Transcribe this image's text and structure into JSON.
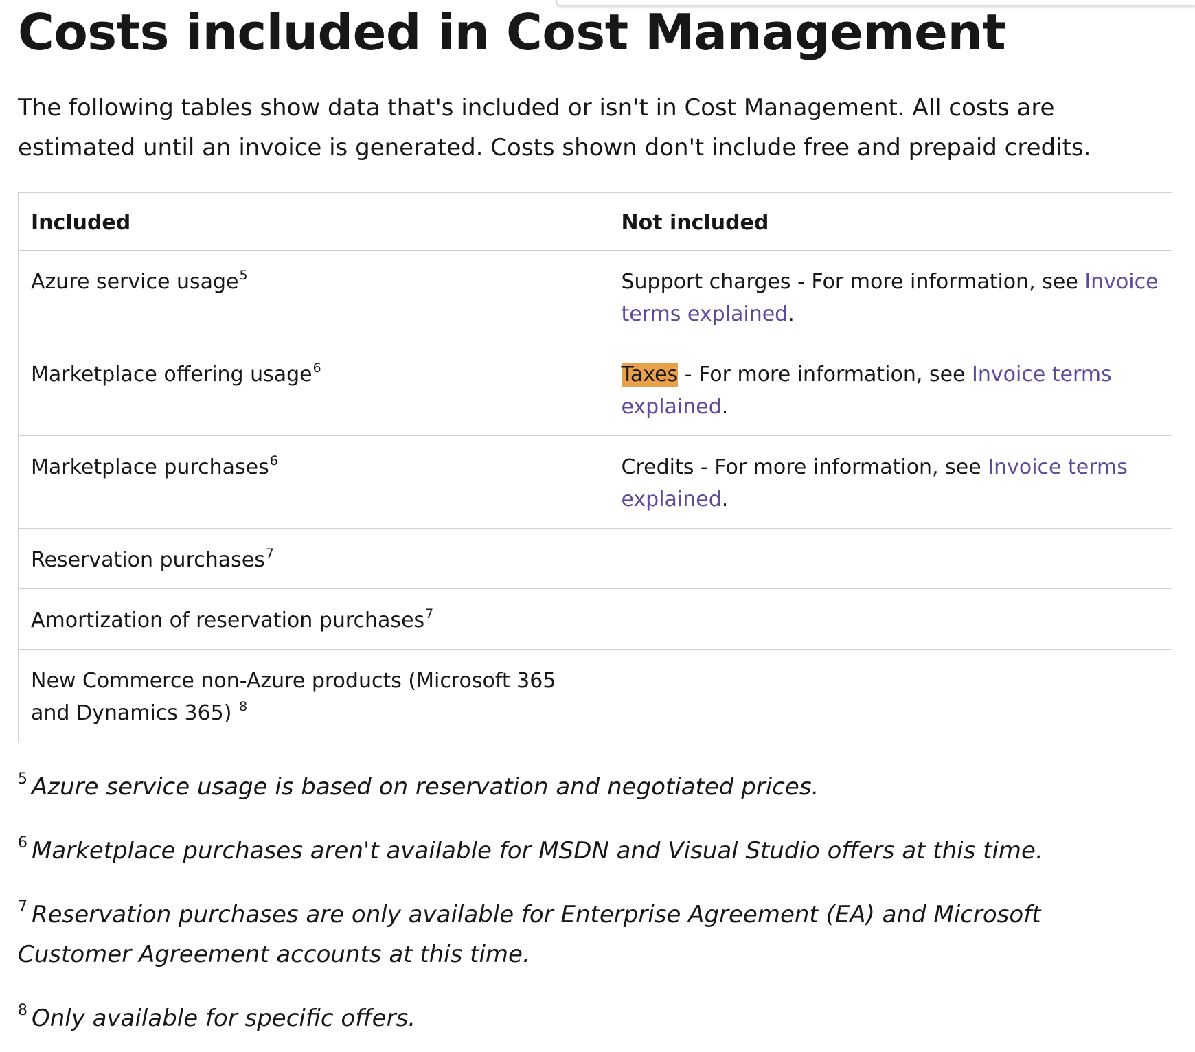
{
  "page": {
    "title": "Costs included in Cost Management",
    "intro": "The following tables show data that's included or isn't in Cost Management. All costs are estimated until an invoice is generated. Costs shown don't include free and prepaid credits."
  },
  "table": {
    "headers": [
      "Included",
      "Not included"
    ],
    "rows": [
      {
        "included": "Azure service usage",
        "included_note": "5",
        "not_included_lead": "Support charges",
        "not_included_text": " - For more information, see ",
        "not_included_link": "Invoice terms explained",
        "not_included_end": "."
      },
      {
        "included": "Marketplace offering usage",
        "included_note": "6",
        "not_included_lead": "Taxes",
        "not_included_text": " - For more information, see ",
        "not_included_link": "Invoice terms explained",
        "not_included_end": "."
      },
      {
        "included": "Marketplace purchases",
        "included_note": "6",
        "not_included_lead": "Credits",
        "not_included_text": " - For more information, see ",
        "not_included_link": "Invoice terms explained",
        "not_included_end": "."
      },
      {
        "included": "Reservation purchases",
        "included_note": "7"
      },
      {
        "included": "Amortization of reservation purchases",
        "included_note": "7"
      },
      {
        "included": "New Commerce non-Azure products (Microsoft 365 and Dynamics 365) ",
        "included_note": "8"
      }
    ]
  },
  "footnotes": [
    {
      "mark": "5",
      "text": "Azure service usage is based on reservation and negotiated prices."
    },
    {
      "mark": "6",
      "text": "Marketplace purchases aren't available for MSDN and Visual Studio offers at this time."
    },
    {
      "mark": "7",
      "text": "Reservation purchases are only available for Enterprise Agreement (EA) and Microsoft Customer Agreement accounts at this time."
    },
    {
      "mark": "8",
      "text": "Only available for specific offers."
    }
  ],
  "colors": {
    "text": "#171717",
    "link": "#5c4a9c",
    "highlight": "#e8a04a",
    "border": "#d1d1d1"
  }
}
